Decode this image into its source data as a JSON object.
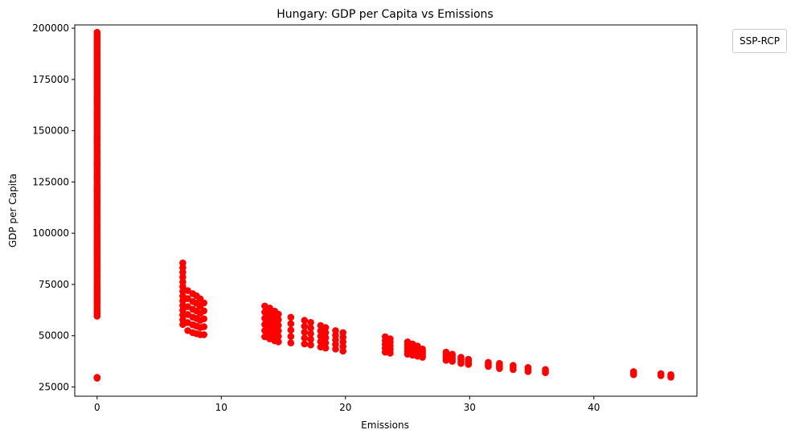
{
  "chart_data": {
    "type": "scatter",
    "title": "Hungary: GDP per Capita vs Emissions",
    "xlabel": "Emissions",
    "ylabel": "GDP per Capita",
    "xlim": [
      -1.8,
      48.3
    ],
    "ylim": [
      20500,
      201600
    ],
    "xticks": [
      0,
      10,
      20,
      30,
      40
    ],
    "yticks": [
      25000,
      50000,
      75000,
      100000,
      125000,
      150000,
      175000,
      200000
    ],
    "grid": false,
    "legend": {
      "title": "SSP-RCP",
      "placement": "upper right, outside plot area"
    },
    "marker_color": "#ff0000",
    "clusters": [
      {
        "x": 0.0,
        "y_min": 59500,
        "y_max": 198000,
        "n": 115
      },
      {
        "x": 0.0,
        "y_min": 29300,
        "y_max": 29700,
        "n": 2
      },
      {
        "x": 6.9,
        "y_min": 55500,
        "y_max": 85500,
        "n": 14
      },
      {
        "x": 7.3,
        "y_min": 52500,
        "y_max": 72000,
        "n": 6
      },
      {
        "x": 7.7,
        "y_min": 51500,
        "y_max": 70500,
        "n": 6
      },
      {
        "x": 8.0,
        "y_min": 51000,
        "y_max": 69500,
        "n": 6
      },
      {
        "x": 8.3,
        "y_min": 50500,
        "y_max": 68000,
        "n": 6
      },
      {
        "x": 8.6,
        "y_min": 50500,
        "y_max": 66000,
        "n": 5
      },
      {
        "x": 13.5,
        "y_min": 49500,
        "y_max": 64500,
        "n": 6
      },
      {
        "x": 13.9,
        "y_min": 48500,
        "y_max": 63500,
        "n": 6
      },
      {
        "x": 14.3,
        "y_min": 47500,
        "y_max": 62000,
        "n": 6
      },
      {
        "x": 14.6,
        "y_min": 47000,
        "y_max": 60500,
        "n": 6
      },
      {
        "x": 15.6,
        "y_min": 46500,
        "y_max": 59000,
        "n": 5
      },
      {
        "x": 16.7,
        "y_min": 46000,
        "y_max": 57500,
        "n": 5
      },
      {
        "x": 17.2,
        "y_min": 45500,
        "y_max": 56500,
        "n": 5
      },
      {
        "x": 18.0,
        "y_min": 44500,
        "y_max": 55000,
        "n": 5
      },
      {
        "x": 18.4,
        "y_min": 44000,
        "y_max": 54000,
        "n": 5
      },
      {
        "x": 19.2,
        "y_min": 43500,
        "y_max": 52500,
        "n": 5
      },
      {
        "x": 19.8,
        "y_min": 42500,
        "y_max": 51500,
        "n": 5
      },
      {
        "x": 23.2,
        "y_min": 42000,
        "y_max": 49500,
        "n": 5
      },
      {
        "x": 23.6,
        "y_min": 41500,
        "y_max": 48500,
        "n": 5
      },
      {
        "x": 25.0,
        "y_min": 41000,
        "y_max": 47000,
        "n": 5
      },
      {
        "x": 25.4,
        "y_min": 40500,
        "y_max": 46000,
        "n": 5
      },
      {
        "x": 25.8,
        "y_min": 40000,
        "y_max": 45000,
        "n": 5
      },
      {
        "x": 26.2,
        "y_min": 39500,
        "y_max": 43500,
        "n": 5
      },
      {
        "x": 28.1,
        "y_min": 38000,
        "y_max": 42000,
        "n": 4
      },
      {
        "x": 28.6,
        "y_min": 37500,
        "y_max": 41000,
        "n": 4
      },
      {
        "x": 29.3,
        "y_min": 36500,
        "y_max": 39500,
        "n": 4
      },
      {
        "x": 29.9,
        "y_min": 36000,
        "y_max": 38500,
        "n": 4
      },
      {
        "x": 31.5,
        "y_min": 35000,
        "y_max": 37000,
        "n": 4
      },
      {
        "x": 32.4,
        "y_min": 34000,
        "y_max": 36500,
        "n": 4
      },
      {
        "x": 33.5,
        "y_min": 33500,
        "y_max": 35500,
        "n": 3
      },
      {
        "x": 34.7,
        "y_min": 32500,
        "y_max": 34500,
        "n": 3
      },
      {
        "x": 36.1,
        "y_min": 32000,
        "y_max": 33500,
        "n": 3
      },
      {
        "x": 43.2,
        "y_min": 31000,
        "y_max": 32500,
        "n": 3
      },
      {
        "x": 45.4,
        "y_min": 30500,
        "y_max": 31500,
        "n": 2
      },
      {
        "x": 46.2,
        "y_min": 29800,
        "y_max": 31000,
        "n": 3
      }
    ]
  }
}
